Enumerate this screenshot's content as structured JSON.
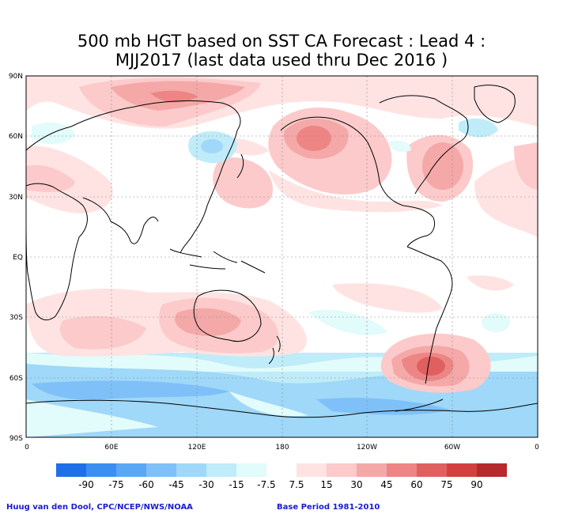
{
  "title_line1": "500 mb HGT based on SST CA Forecast : Lead 4 :",
  "title_line2": "MJJ2017 (last data used thru Dec 2016 )",
  "lat_labels": [
    "90N",
    "60N",
    "30N",
    "EQ",
    "30S",
    "60S",
    "90S"
  ],
  "lon_labels": [
    "0",
    "60E",
    "120E",
    "180",
    "120W",
    "60W",
    "0"
  ],
  "colorbar": {
    "labels": [
      "-90",
      "-75",
      "-60",
      "-45",
      "-30",
      "-15",
      "-7.5",
      "7.5",
      "15",
      "30",
      "45",
      "60",
      "75",
      "90"
    ],
    "colors": [
      "#1f6fe8",
      "#3b8ff0",
      "#5aa7f5",
      "#7fc0f8",
      "#9fd8f8",
      "#bfecf8",
      "#e2fbfb",
      "#ffffff",
      "#ffe3e3",
      "#fccaca",
      "#f5a8a8",
      "#ee8585",
      "#e06060",
      "#d44040",
      "#b52a2a"
    ]
  },
  "footer": {
    "credit": "Huug van den Dool, CPC/NCEP/NWS/NOAA",
    "base_period": "Base Period 1981-2010"
  },
  "colors": {
    "border": "#000000",
    "gridline": "#888888",
    "coastline": "#000000",
    "footer_text": "#1a1ad0"
  }
}
